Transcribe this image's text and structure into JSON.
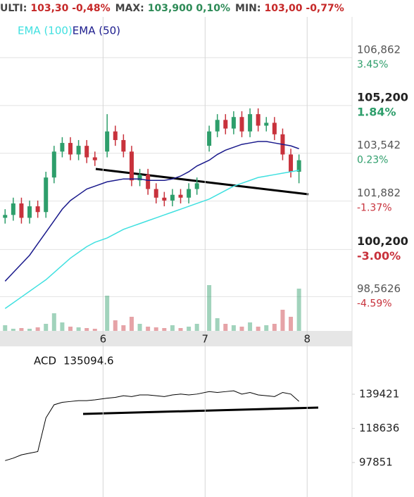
{
  "header": [
    {
      "label": "ULTI:",
      "value": "103,30 -0,48%",
      "color": "#c62828"
    },
    {
      "label": "MAX:",
      "value": "103,900 0,10%",
      "color": "#2e8b57"
    },
    {
      "label": "MIN:",
      "value": "103,00 -0,77%",
      "color": "#c62828"
    }
  ],
  "chart_data": [
    {
      "type": "candlestick",
      "up_color": "#2e9e6b",
      "down_color": "#c8323c",
      "x": [
        5.04,
        5.12,
        5.2,
        5.28,
        5.36,
        5.44,
        5.52,
        5.6,
        5.68,
        5.76,
        5.84,
        5.92,
        6.04,
        6.12,
        6.2,
        6.28,
        6.36,
        6.44,
        6.52,
        6.6,
        6.68,
        6.76,
        6.84,
        6.92,
        7.04,
        7.12,
        7.2,
        7.28,
        7.36,
        7.44,
        7.52,
        7.6,
        7.68,
        7.76,
        7.84,
        7.92
      ],
      "open": [
        101.3,
        101.4,
        101.8,
        101.3,
        101.7,
        101.5,
        102.7,
        103.6,
        103.9,
        103.5,
        103.8,
        103.4,
        103.6,
        104.3,
        104.0,
        103.6,
        102.6,
        102.8,
        102.3,
        102.0,
        101.9,
        102.1,
        102.0,
        102.3,
        103.8,
        104.3,
        104.7,
        104.4,
        104.8,
        104.3,
        104.9,
        104.5,
        104.6,
        104.2,
        103.5,
        102.9
      ],
      "high": [
        101.6,
        102.0,
        102.0,
        101.9,
        101.9,
        102.9,
        103.8,
        104.1,
        104.1,
        104.0,
        104.0,
        103.6,
        104.9,
        104.5,
        104.2,
        103.8,
        103.0,
        103.0,
        102.5,
        102.2,
        102.3,
        102.3,
        102.5,
        102.7,
        104.5,
        104.9,
        104.9,
        105.0,
        105.0,
        105.1,
        105.1,
        104.8,
        104.8,
        104.4,
        103.7,
        103.5
      ],
      "low": [
        101.1,
        101.2,
        101.1,
        101.1,
        101.3,
        101.3,
        102.5,
        103.4,
        103.3,
        103.3,
        103.2,
        103.1,
        103.4,
        103.8,
        103.4,
        102.4,
        102.4,
        102.1,
        101.8,
        101.7,
        101.7,
        101.8,
        101.8,
        102.1,
        103.6,
        104.1,
        104.2,
        104.2,
        104.1,
        104.1,
        104.3,
        104.3,
        104.0,
        103.3,
        102.7,
        102.5
      ],
      "close": [
        101.4,
        101.8,
        101.3,
        101.7,
        101.5,
        102.7,
        103.6,
        103.9,
        103.5,
        103.8,
        103.4,
        103.3,
        104.3,
        104.0,
        103.6,
        102.6,
        102.8,
        102.3,
        102.0,
        101.9,
        102.1,
        102.0,
        102.3,
        102.5,
        104.3,
        104.7,
        104.4,
        104.8,
        104.3,
        104.9,
        104.5,
        104.6,
        104.2,
        103.5,
        102.9,
        103.3
      ],
      "volume": [
        8,
        3,
        4,
        3,
        5,
        10,
        25,
        12,
        6,
        5,
        4,
        3,
        50,
        15,
        8,
        20,
        10,
        6,
        5,
        4,
        8,
        4,
        6,
        10,
        65,
        18,
        10,
        8,
        6,
        12,
        6,
        8,
        10,
        30,
        20,
        60
      ],
      "series": [
        {
          "name": "EMA (100)",
          "color": "#40e0e0",
          "values": [
            98.15,
            98.35,
            98.55,
            98.75,
            98.95,
            99.15,
            99.4,
            99.65,
            99.9,
            100.1,
            100.3,
            100.45,
            100.6,
            100.75,
            100.9,
            101.0,
            101.1,
            101.2,
            101.3,
            101.4,
            101.5,
            101.6,
            101.7,
            101.8,
            101.95,
            102.1,
            102.25,
            102.4,
            102.5,
            102.6,
            102.7,
            102.75,
            102.8,
            102.85,
            102.9,
            102.95
          ]
        },
        {
          "name": "EMA (50)",
          "color": "#1a1a8c",
          "values": [
            99.1,
            99.4,
            99.7,
            100.0,
            100.4,
            100.8,
            101.2,
            101.6,
            101.9,
            102.1,
            102.3,
            102.4,
            102.55,
            102.6,
            102.65,
            102.65,
            102.65,
            102.6,
            102.6,
            102.6,
            102.65,
            102.75,
            102.9,
            103.1,
            103.3,
            103.5,
            103.65,
            103.75,
            103.85,
            103.9,
            103.95,
            103.95,
            103.9,
            103.85,
            103.8,
            103.7
          ]
        }
      ],
      "xlim": [
        4.99,
        8.44
      ],
      "xticks": [
        6,
        7,
        8
      ],
      "ylim": [
        97.375,
        108.13
      ],
      "yticks": [
        {
          "value": 106.862,
          "label": "106,862"
        },
        {
          "value": 105.2,
          "label": "105,200"
        },
        {
          "value": 103.542,
          "label": "103,542"
        },
        {
          "value": 101.882,
          "label": "101,882"
        },
        {
          "value": 100.2,
          "label": "100,200"
        },
        {
          "value": 98.5626,
          "label": "98,5626"
        }
      ],
      "change_labels": [
        {
          "label": "3.45%",
          "color": "#2e9e6b",
          "bold": false
        },
        {
          "label": "1.84%",
          "color": "#2e9e6b",
          "bold": true
        },
        {
          "label": "0.23%",
          "color": "#2e9e6b",
          "bold": false
        },
        {
          "label": "-1.37%",
          "color": "#c8323c",
          "bold": false
        },
        {
          "label": "-3.00%",
          "color": "#c8323c",
          "bold": true
        },
        {
          "label": "-4.59%",
          "color": "#c8323c",
          "bold": false
        }
      ],
      "grid": true
    },
    {
      "type": "line",
      "title": "ACD",
      "last_value": 135094.6,
      "color": "#000000",
      "x": [
        5.04,
        5.12,
        5.2,
        5.28,
        5.36,
        5.44,
        5.52,
        5.6,
        5.68,
        5.76,
        5.84,
        5.92,
        6.04,
        6.12,
        6.2,
        6.28,
        6.36,
        6.44,
        6.52,
        6.6,
        6.68,
        6.76,
        6.84,
        6.92,
        7.04,
        7.12,
        7.2,
        7.28,
        7.36,
        7.44,
        7.52,
        7.6,
        7.68,
        7.76,
        7.84,
        7.92
      ],
      "values": [
        99000,
        100500,
        102500,
        103500,
        104500,
        125000,
        133000,
        134500,
        135000,
        135500,
        135500,
        136000,
        137000,
        137500,
        138500,
        138000,
        139000,
        139000,
        138500,
        138000,
        139000,
        139500,
        139000,
        139500,
        141000,
        140500,
        141000,
        141500,
        139500,
        140500,
        139000,
        138500,
        138000,
        140500,
        139500,
        135094.6
      ],
      "xlim": [
        4.99,
        8.44
      ],
      "ylim": [
        76840,
        167280
      ],
      "yticks": [
        139421,
        118636,
        97851
      ]
    }
  ]
}
